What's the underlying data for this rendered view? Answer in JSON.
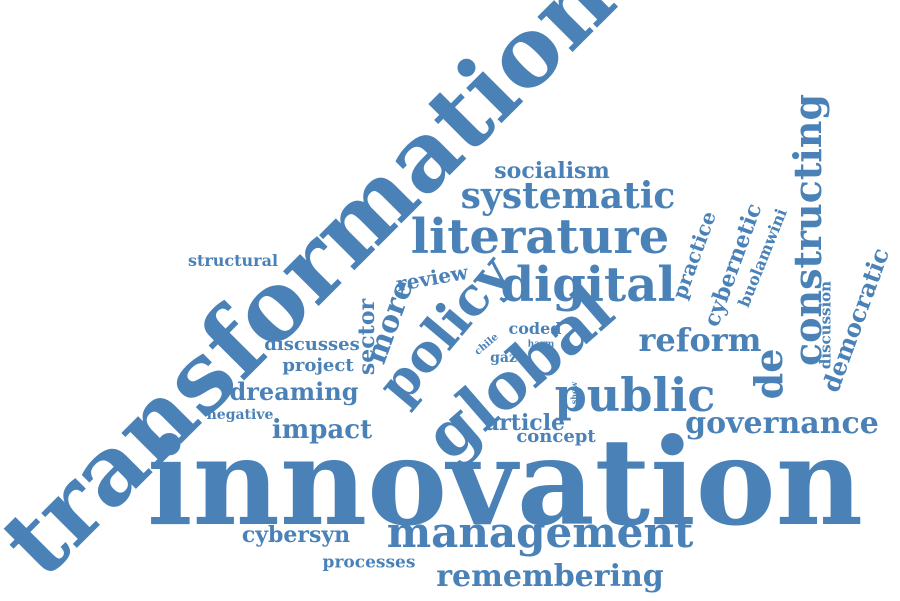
{
  "color": "#4a82b8",
  "words": [
    {
      "text": "innovation"
    },
    {
      "text": "transformation"
    },
    {
      "text": "global"
    },
    {
      "text": "management"
    },
    {
      "text": "public"
    },
    {
      "text": "literature"
    },
    {
      "text": "policy"
    },
    {
      "text": "digital"
    },
    {
      "text": "constructing"
    },
    {
      "text": "remembering"
    },
    {
      "text": "systematic"
    },
    {
      "text": "governance"
    },
    {
      "text": "reform"
    },
    {
      "text": "socialism"
    },
    {
      "text": "democratic"
    },
    {
      "text": "de"
    },
    {
      "text": "more"
    },
    {
      "text": "sector"
    },
    {
      "text": "impact"
    },
    {
      "text": "dreaming"
    },
    {
      "text": "cybersyn"
    },
    {
      "text": "cybernetic"
    },
    {
      "text": "practice"
    },
    {
      "text": "article"
    },
    {
      "text": "concept"
    },
    {
      "text": "processes"
    },
    {
      "text": "discusses"
    },
    {
      "text": "project"
    },
    {
      "text": "review"
    },
    {
      "text": "structural"
    },
    {
      "text": "negative"
    },
    {
      "text": "buolamwini"
    },
    {
      "text": "discussion"
    },
    {
      "text": "coded"
    },
    {
      "text": "gaze"
    },
    {
      "text": "chile"
    },
    {
      "text": "harm"
    },
    {
      "text": "show"
    }
  ]
}
